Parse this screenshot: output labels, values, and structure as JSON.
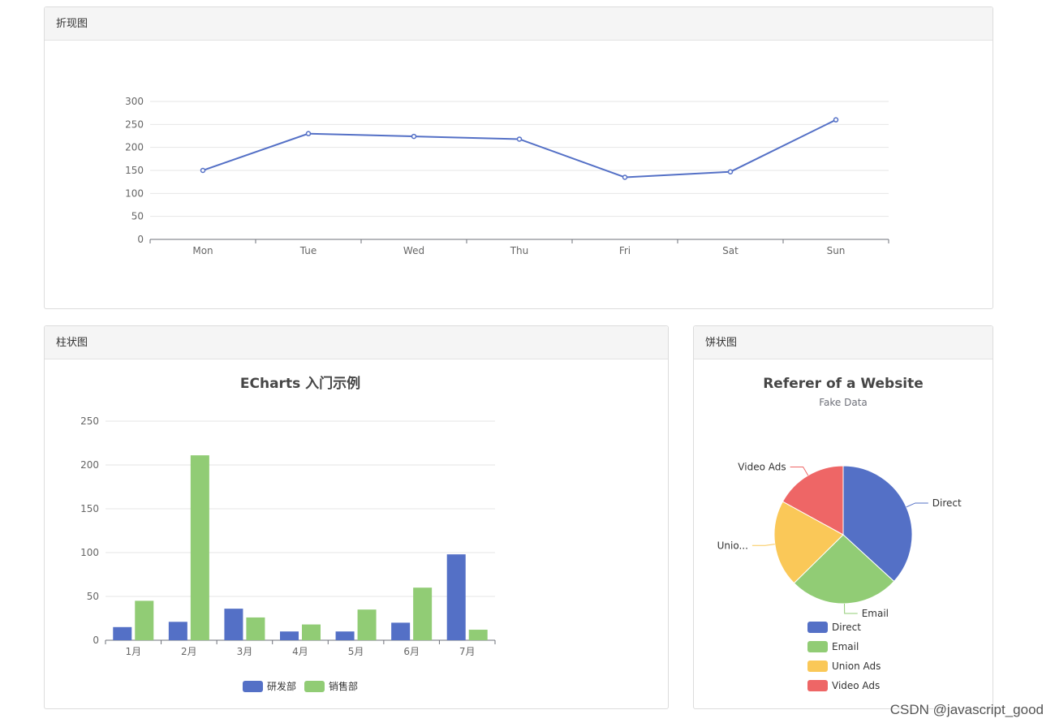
{
  "panels": {
    "line": {
      "header": "折现图"
    },
    "bar": {
      "header": "柱状图"
    },
    "pie": {
      "header": "饼状图"
    }
  },
  "watermark": "CSDN @javascript_good",
  "chart_data": [
    {
      "type": "line",
      "categories": [
        "Mon",
        "Tue",
        "Wed",
        "Thu",
        "Fri",
        "Sat",
        "Sun"
      ],
      "values": [
        150,
        230,
        224,
        218,
        135,
        147,
        260
      ],
      "ylim": [
        0,
        300
      ],
      "yticks": [
        0,
        50,
        100,
        150,
        200,
        250,
        300
      ],
      "color": "#5470c6",
      "grid": true
    },
    {
      "type": "bar",
      "title": "ECharts 入门示例",
      "categories": [
        "1月",
        "2月",
        "3月",
        "4月",
        "5月",
        "6月",
        "7月"
      ],
      "series": [
        {
          "name": "研发部",
          "values": [
            15,
            21,
            36,
            10,
            10,
            20,
            98
          ],
          "color": "#5470c6"
        },
        {
          "name": "销售部",
          "values": [
            45,
            211,
            26,
            18,
            35,
            60,
            12
          ],
          "color": "#91cc75"
        }
      ],
      "ylim": [
        0,
        250
      ],
      "yticks": [
        0,
        50,
        100,
        150,
        200,
        250
      ],
      "legend": "bottom-center",
      "grid": true
    },
    {
      "type": "pie",
      "title": "Referer of a Website",
      "subtitle": "Fake Data",
      "slices": [
        {
          "name": "Direct",
          "label": "Direct",
          "value": 1048,
          "color": "#5470c6"
        },
        {
          "name": "Email",
          "label": "Email",
          "value": 735,
          "color": "#91cc75"
        },
        {
          "name": "Union Ads",
          "label": "Unio...",
          "value": 580,
          "color": "#fac858"
        },
        {
          "name": "Video Ads",
          "label": "Video Ads",
          "value": 484,
          "color": "#ee6666"
        }
      ],
      "legend": "bottom-center"
    }
  ]
}
